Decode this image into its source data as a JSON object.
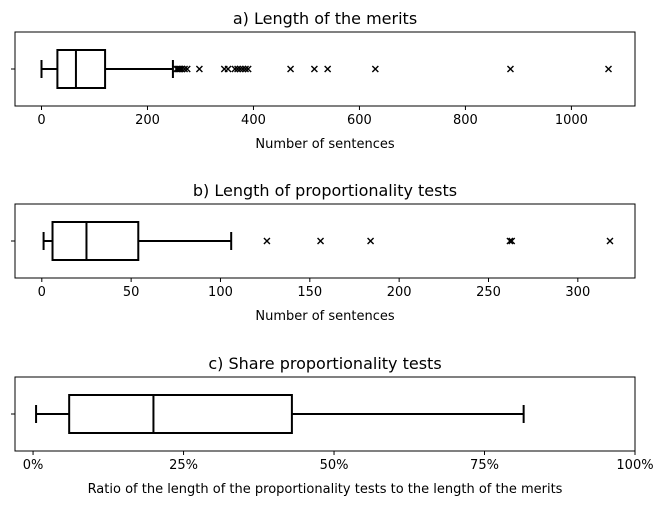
{
  "chart_data": [
    {
      "type": "boxplot",
      "title": "a) Length of the merits",
      "xlabel": "Number of sentences",
      "xlim": [
        -50,
        1120
      ],
      "xticks": [
        0,
        200,
        400,
        600,
        800,
        1000
      ],
      "tick_labels": [
        "0",
        "200",
        "400",
        "600",
        "800",
        "1000"
      ],
      "stats": {
        "whislo": 0,
        "q1": 30,
        "median": 65,
        "q3": 120,
        "whishi": 248
      },
      "outliers": [
        255,
        258,
        260,
        262,
        265,
        270,
        275,
        298,
        345,
        352,
        365,
        370,
        375,
        380,
        385,
        390,
        470,
        515,
        540,
        630,
        885,
        1070
      ]
    },
    {
      "type": "boxplot",
      "title": "b) Length of proportionality tests",
      "xlabel": "Number of sentences",
      "xlim": [
        -15,
        332
      ],
      "xticks": [
        0,
        50,
        100,
        150,
        200,
        250,
        300
      ],
      "tick_labels": [
        "0",
        "50",
        "100",
        "150",
        "200",
        "250",
        "300"
      ],
      "stats": {
        "whislo": 1,
        "q1": 6,
        "median": 25,
        "q3": 54,
        "whishi": 106
      },
      "outliers": [
        126,
        156,
        184,
        262,
        263,
        318
      ]
    },
    {
      "type": "boxplot",
      "title": "c) Share proportionality tests",
      "xlabel": "Ratio of the length of the proportionality tests to the length of the merits",
      "xlim": [
        -0.03,
        1.0
      ],
      "xticks": [
        0,
        0.25,
        0.5,
        0.75,
        1.0
      ],
      "tick_labels": [
        "0%",
        "25%",
        "50%",
        "75%",
        "100%"
      ],
      "stats": {
        "whislo": 0.005,
        "q1": 0.06,
        "median": 0.2,
        "q3": 0.43,
        "whishi": 0.815
      },
      "outliers": []
    }
  ]
}
